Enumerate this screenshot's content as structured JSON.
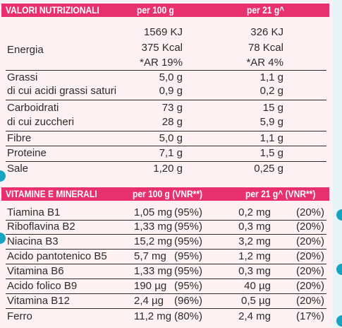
{
  "table1": {
    "header": {
      "col0": "VALORI NUTRIZIONALI",
      "col1": "per 100 g",
      "col2": "per 21 g^"
    },
    "energia": {
      "label": "Energia",
      "kj_100": "1569 KJ",
      "kcal_100": "375 Kcal",
      "ar_100": "*AR 19%",
      "kj_21": "326 KJ",
      "kcal_21": "78 Kcal",
      "ar_21": "*AR 4%"
    },
    "rows": [
      {
        "label": "Grassi",
        "v100": "5,0 g",
        "v21": "1,1 g"
      },
      {
        "label": "di cui acidi grassi saturi",
        "v100": "0,9 g",
        "v21": "0,2 g"
      },
      {
        "label": "Carboidrati",
        "v100": "73 g",
        "v21": "15 g"
      },
      {
        "label": "di cui zuccheri",
        "v100": "28 g",
        "v21": "5,9 g"
      },
      {
        "label": "Fibre",
        "v100": "5,0 g",
        "v21": "1,1 g"
      },
      {
        "label": "Proteine",
        "v100": "7,1 g",
        "v21": "1,5 g"
      },
      {
        "label": "Sale",
        "v100": "1,20 g",
        "v21": "0,25 g"
      }
    ]
  },
  "table2": {
    "header": {
      "col0": "VITAMINE E MINERALI",
      "col1": "per 100 g (VNR**)",
      "col2": "per 21 g^ (VNR**)"
    },
    "rows": [
      {
        "label": "Tiamina B1",
        "v100": "1,05 mg",
        "p100": "(95%)",
        "v21": "0,2 mg",
        "p21": "(20%)"
      },
      {
        "label": "Riboflavina B2",
        "v100": "1,33 mg",
        "p100": "(95%)",
        "v21": "0,3 mg",
        "p21": "(20%)"
      },
      {
        "label": "Niacina B3",
        "v100": "15,2 mg",
        "p100": "(95%)",
        "v21": "3,2 mg",
        "p21": "(20%)"
      },
      {
        "label": "Acido pantotenico B5",
        "v100": "5,7 mg",
        "p100": "(95%)",
        "v21": "1,2 mg",
        "p21": "(20%)"
      },
      {
        "label": "Vitamina B6",
        "v100": "1,33 mg",
        "p100": "(95%)",
        "v21": "0,3 mg",
        "p21": "(20%)"
      },
      {
        "label": "Acido folico B9",
        "v100": "190 µg",
        "p100": "(95%)",
        "v21": "40 µg",
        "p21": "(20%)"
      },
      {
        "label": "Vitamina B12",
        "v100": "2,4 µg",
        "p100": "(96%)",
        "v21": "0,5 µg",
        "p21": "(20%)"
      },
      {
        "label": "Ferro",
        "v100": "11,2 mg",
        "p100": "(80%)",
        "v21": "2,4 mg",
        "p21": "(17%)"
      }
    ]
  },
  "colors": {
    "header_bg": "#e8306f",
    "header_text": "#ffffff",
    "panel_bg": "#fdf1f4",
    "accent_dot": "#17a3c2"
  }
}
